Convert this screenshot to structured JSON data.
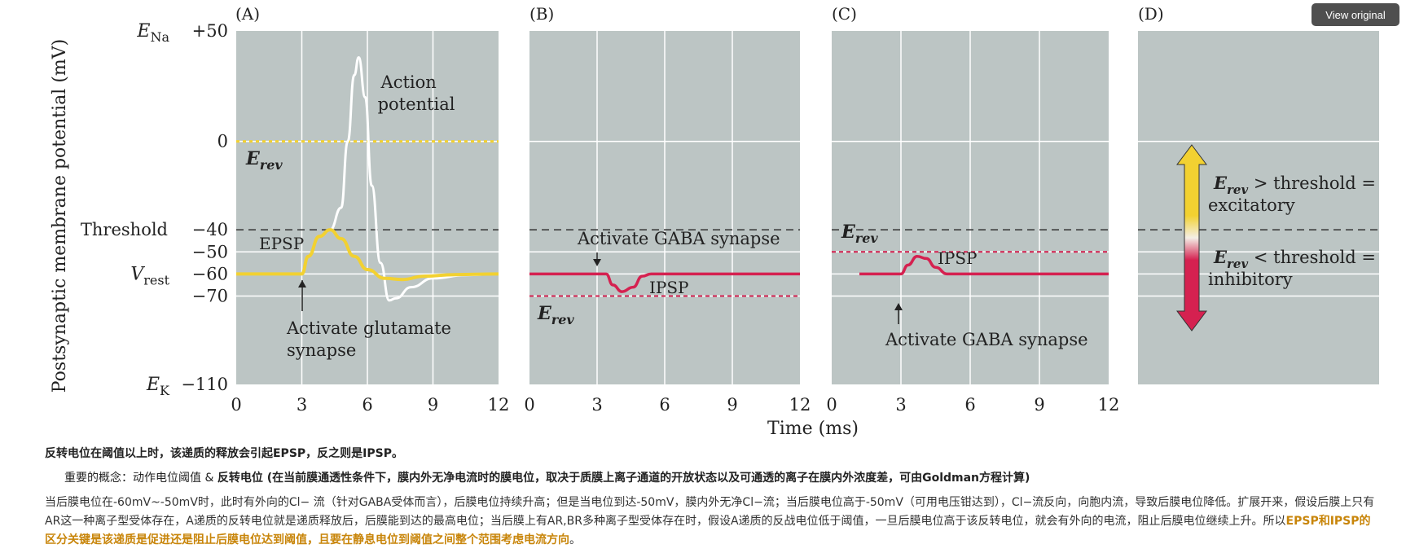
{
  "view_original_label": "View original",
  "chart_data": {
    "type": "line",
    "ylabel": "Postsynaptic membrane potential (mV)",
    "xlabel": "Time (ms)",
    "ylim": [
      -110,
      50
    ],
    "xlim": [
      0,
      12
    ],
    "x_ticks": [
      "0",
      "3",
      "6",
      "9",
      "12"
    ],
    "y_ticks": [
      {
        "value": 50,
        "label": "+50",
        "marker_main": "E",
        "marker_sub": "Na"
      },
      {
        "value": 0,
        "label": "0",
        "marker_main": "",
        "marker_sub": ""
      },
      {
        "value": -40,
        "label": "−40",
        "marker_main": "Threshold",
        "marker_sub": ""
      },
      {
        "value": -50,
        "label": "−50",
        "marker_main": "",
        "marker_sub": ""
      },
      {
        "value": -60,
        "label": "−60",
        "marker_main": "V",
        "marker_sub": "rest"
      },
      {
        "value": -70,
        "label": "−70",
        "marker_main": "",
        "marker_sub": ""
      },
      {
        "value": -110,
        "label": "−110",
        "marker_main": "E",
        "marker_sub": "K"
      }
    ],
    "grid": true,
    "threshold_mv": -40,
    "colors": {
      "plot_bg": "#bcc5c4",
      "epsp": "#f2d131",
      "ipsp": "#d52150",
      "ap": "#ffffff",
      "erev_exc": "#f2d131",
      "erev_inh": "#d52150"
    },
    "panels": [
      {
        "letter": "(A)",
        "erev_mv": 0,
        "erev_color": "#f2d131",
        "series": [
          {
            "name": "EPSP",
            "color": "#f2d131",
            "x": [
              0,
              3,
              3.3,
              3.8,
              4.3,
              4.8,
              5.4,
              6.0,
              6.8,
              7.6,
              8.6,
              10,
              12
            ],
            "y": [
              -60,
              -60,
              -52,
              -43,
              -40,
              -44,
              -52,
              -58,
              -62,
              -62.5,
              -61,
              -60.3,
              -60
            ]
          },
          {
            "name": "Action potential",
            "color": "#ffffff",
            "x": [
              3.8,
              4.3,
              4.8,
              5.1,
              5.4,
              5.6,
              5.9,
              6.2,
              6.6,
              7.0,
              7.3,
              8.0,
              9.0,
              10.5,
              12
            ],
            "y": [
              -43,
              -40,
              -30,
              0,
              30,
              38,
              20,
              -20,
              -55,
              -72,
              -71,
              -66,
              -62,
              -60.5,
              -60
            ]
          }
        ],
        "labels": {
          "erev_main": "E",
          "erev_sub": "rev",
          "epsp": "EPSP",
          "ap_line1": "Action",
          "ap_line2": "potential",
          "stim_line1": "Activate glutamate",
          "stim_line2": "synapse"
        },
        "stim_x": 3
      },
      {
        "letter": "(B)",
        "erev_mv": -70,
        "erev_color": "#d52150",
        "series": [
          {
            "name": "IPSP",
            "color": "#d52150",
            "x": [
              0,
              3.4,
              3.7,
              4.1,
              4.6,
              5.0,
              5.4,
              7,
              12
            ],
            "y": [
              -60,
              -60,
              -65,
              -68,
              -66,
              -61,
              -60,
              -60,
              -60
            ]
          }
        ],
        "labels": {
          "erev_main": "E",
          "erev_sub": "rev",
          "ipsp": "IPSP",
          "stim_line1": "Activate GABA synapse"
        },
        "stim_x": 3
      },
      {
        "letter": "(C)",
        "erev_mv": -50,
        "erev_color": "#d52150",
        "series": [
          {
            "name": "IPSP",
            "color": "#d52150",
            "x": [
              1.2,
              3,
              3.3,
              3.7,
              4.1,
              4.5,
              5.0,
              6,
              12
            ],
            "y": [
              -60,
              -60,
              -56,
              -52,
              -53,
              -57,
              -60,
              -60,
              -60
            ]
          }
        ],
        "labels": {
          "erev_main": "E",
          "erev_sub": "rev",
          "ipsp": "IPSP",
          "stim_line1": "Activate GABA synapse"
        },
        "stim_x": 3
      },
      {
        "letter": "(D)",
        "excitatory_line1_main": "E",
        "excitatory_line1_sub": "rev",
        "excitatory_line1_rest": " > threshold =",
        "excitatory_line2": "excitatory",
        "inhibitory_line1_main": "E",
        "inhibitory_line1_sub": "rev",
        "inhibitory_line1_rest": " < threshold =",
        "inhibitory_line2": "inhibitory"
      }
    ]
  },
  "notes": {
    "summary": "反转电位在阈值以上时，该递质的释放会引起EPSP，反之则是IPSP。",
    "concept_prefix": "重要的概念：动作电位阈值 & ",
    "concept_bold": "反转电位 (在当前膜通透性条件下，膜内外无净电流时的膜电位，取决于质膜上离子通道的开放状态以及可通透的离子在膜内外浓度差，可由Goldman方程计算)",
    "body_text": "当后膜电位在-60mV~-50mV时，此时有外向的Cl− 流（针对GABA受体而言），后膜电位持续升高；但是当电位到达-50mV，膜内外无净Cl−流；当后膜电位高于-50mV（可用电压钳达到），Cl−流反向，向胞内流，导致后膜电位降低。扩展开来，假设后膜上只有AR这一种离子型受体存在，A递质的反转电位就是递质释放后，后膜能到达的最高电位；当后膜上有AR,BR多种离子型受体存在时，假设A递质的反战电位低于阈值，一旦后膜电位高于该反转电位，就会有外向的电流，阻止后膜电位继续上升。所以",
    "body_highlight": "EPSP和IPSP的区分关键是该递质是促进还是阻止后膜电位达到阈值，且要在静息电位到阈值之间整个范围考虑电流方向",
    "body_end": "。"
  }
}
